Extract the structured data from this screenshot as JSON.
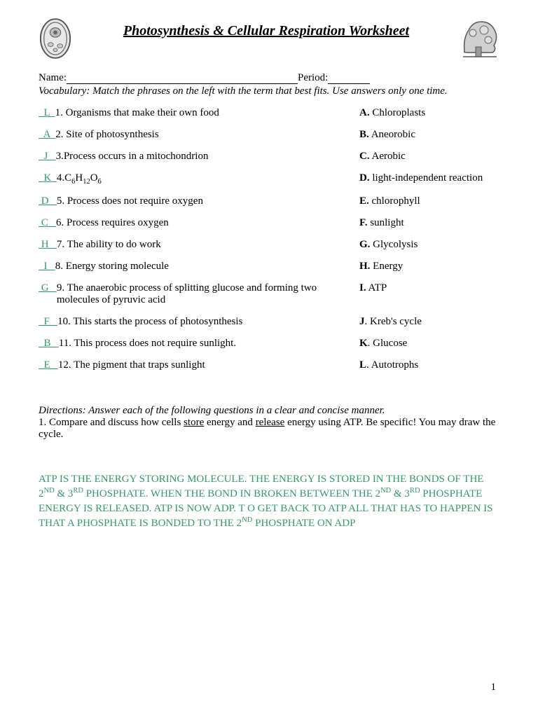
{
  "title": "Photosynthesis & Cellular Respiration Worksheet",
  "name_label": "Name:",
  "period_label": "Period:",
  "vocab_instructions": "Vocabulary: Match the phrases on the left with the term that best fits. Use answers only one time.",
  "answer_color": "#339966",
  "questions": [
    {
      "ans": "  L  ",
      "text": "1. Organisms that make their own food"
    },
    {
      "ans": "  A  ",
      "text": "2.  Site of photosynthesis"
    },
    {
      "ans": "  J   ",
      "text": "3.Process occurs in a mitochondrion"
    },
    {
      "ans": "  K  ",
      "text_html": "4.C<sub>6</sub>H<sub>12</sub>O<sub>6</sub>"
    },
    {
      "ans": " D   ",
      "text": "5. Process does not require oxygen"
    },
    {
      "ans": " C   ",
      "text": "6. Process requires oxygen"
    },
    {
      "ans": " H   ",
      "text": " 7. The ability to do work"
    },
    {
      "ans": "  I   ",
      "text": "8.          Energy storing molecule"
    },
    {
      "ans": " G   ",
      "text": "9. The anaerobic process of splitting glucose and forming two molecules of pyruvic acid"
    },
    {
      "ans": "  F   ",
      "text": " 10. This starts the process of photosynthesis"
    },
    {
      "ans": "  B   ",
      "text": " 11.  This process does not require sunlight."
    },
    {
      "ans": "  E   ",
      "text": " 12. The pigment that traps sunlight"
    }
  ],
  "options": [
    {
      "letter": "A.",
      "text": " Chloroplasts"
    },
    {
      "letter": "B.",
      "text": " Aneorobic"
    },
    {
      "letter": "C.",
      "text": " Aerobic"
    },
    {
      "letter": "D.",
      "text": " light-independent reaction"
    },
    {
      "letter": "E.",
      "text": " chlorophyll"
    },
    {
      "letter": "F.",
      "text": " sunlight"
    },
    {
      "letter": "G.",
      "text": " Glycolysis"
    },
    {
      "letter": "H.",
      "text": " Energy"
    },
    {
      "letter": "I.",
      "text": " ATP"
    },
    {
      "letter": "J",
      "text": ". Kreb's cycle"
    },
    {
      "letter": "K",
      "text": ". Glucose"
    },
    {
      "letter": "L",
      "text": ". Autotrophs"
    }
  ],
  "directions": "Directions: Answer each of the following questions in a clear and concise manner.",
  "q1_prefix": "1.  Compare and discuss how cells ",
  "q1_u1": "store",
  "q1_mid": " energy and ",
  "q1_u2": "release",
  "q1_suffix": " energy using ATP. Be specific! You may draw the cycle.",
  "answer_html": "ATP IS THE ENERGY STORING MOLECULE. THE ENERGY IS STORED IN THE BONDS OF THE 2<sup>ND</sup> & 3<sup>RD</sup> PHOSPHATE. WHEN THE BOND IN BROKEN BETWEEN THE 2<sup>ND</sup> & 3<sup>RD</sup> PHOSPHATE ENERGY IS RELEASED. ATP IS NOW ADP. T O GET BACK TO ATP ALL THAT HAS TO HAPPEN IS THAT A PHOSPHATE IS BONDED TO THE 2<sup>ND</sup> PHOSPHATE ON ADP",
  "page_number": "1"
}
